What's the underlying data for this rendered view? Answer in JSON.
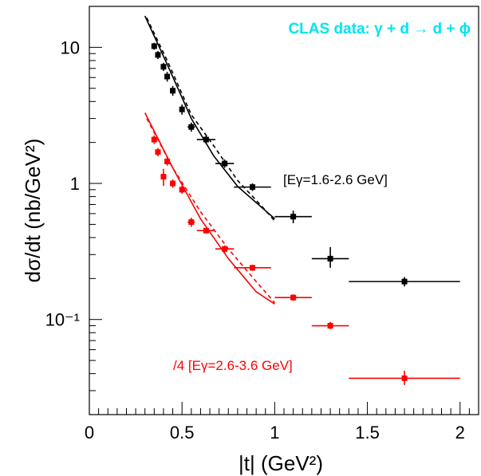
{
  "chart_data": {
    "type": "scatter",
    "title": "CLAS data: γ + d → d + ϕ",
    "title_color": "#00e5ee",
    "xlabel": "|t| (GeV²)",
    "ylabel": "dσ/dt (nb/GeV²)",
    "xlim": [
      0,
      2.1
    ],
    "ylim": [
      0.02,
      20
    ],
    "yscale": "log",
    "x_ticks": [
      0,
      0.5,
      1,
      1.5,
      2
    ],
    "x_tick_labels": [
      "0",
      "0.5",
      "1",
      "1.5",
      "2"
    ],
    "y_ticks": [
      0.1,
      1,
      10
    ],
    "y_tick_labels": [
      "10⁻¹",
      "1",
      "10"
    ],
    "grid": false,
    "series": [
      {
        "label": "[Eγ=1.6-2.6 GeV]",
        "color": "#000000",
        "points": [
          {
            "x": 0.35,
            "y": 10.2,
            "xerr": 0.01,
            "y_lo": 9.6,
            "y_hi": 10.8
          },
          {
            "x": 0.37,
            "y": 8.8,
            "xerr": 0.01,
            "y_lo": 8.2,
            "y_hi": 9.4
          },
          {
            "x": 0.4,
            "y": 7.2,
            "xerr": 0.01,
            "y_lo": 6.7,
            "y_hi": 7.7
          },
          {
            "x": 0.42,
            "y": 6.1,
            "xerr": 0.01,
            "y_lo": 5.6,
            "y_hi": 6.6
          },
          {
            "x": 0.45,
            "y": 4.8,
            "xerr": 0.01,
            "y_lo": 4.4,
            "y_hi": 5.2
          },
          {
            "x": 0.5,
            "y": 3.5,
            "xerr": 0.01,
            "y_lo": 3.2,
            "y_hi": 3.8
          },
          {
            "x": 0.55,
            "y": 2.6,
            "xerr": 0.02,
            "y_lo": 2.4,
            "y_hi": 2.8
          },
          {
            "x": 0.63,
            "y": 2.1,
            "xerr": 0.05,
            "y_lo": 1.95,
            "y_hi": 2.25
          },
          {
            "x": 0.73,
            "y": 1.4,
            "xerr": 0.05,
            "y_lo": 1.3,
            "y_hi": 1.5
          },
          {
            "x": 0.88,
            "y": 0.94,
            "xerr": 0.1,
            "y_lo": 0.88,
            "y_hi": 1.0
          },
          {
            "x": 1.1,
            "y": 0.57,
            "xerr": 0.1,
            "y_lo": 0.51,
            "y_hi": 0.63
          },
          {
            "x": 1.3,
            "y": 0.28,
            "xerr": 0.1,
            "y_lo": 0.24,
            "y_hi": 0.34
          },
          {
            "x": 1.7,
            "y": 0.19,
            "xerr": 0.3,
            "y_lo": 0.175,
            "y_hi": 0.205
          }
        ],
        "fit_solid": [
          [
            0.3,
            17.0
          ],
          [
            0.42,
            7.5
          ],
          [
            0.55,
            3.0
          ],
          [
            0.67,
            1.6
          ],
          [
            0.8,
            0.95
          ],
          [
            1.0,
            0.55
          ]
        ],
        "fit_dashed": [
          [
            0.31,
            16.5
          ],
          [
            0.42,
            8.0
          ],
          [
            0.55,
            3.2
          ],
          [
            0.67,
            1.9
          ],
          [
            0.8,
            1.05
          ],
          [
            0.93,
            0.68
          ],
          [
            1.0,
            0.53
          ]
        ]
      },
      {
        "label": "/4 [Eγ=2.6-3.6 GeV]",
        "color": "#ff0000",
        "points": [
          {
            "x": 0.35,
            "y": 2.1,
            "xerr": 0.01,
            "y_lo": 1.95,
            "y_hi": 2.25
          },
          {
            "x": 0.37,
            "y": 1.7,
            "xerr": 0.01,
            "y_lo": 1.58,
            "y_hi": 1.82
          },
          {
            "x": 0.4,
            "y": 1.12,
            "xerr": 0.01,
            "y_lo": 0.96,
            "y_hi": 1.28
          },
          {
            "x": 0.42,
            "y": 1.45,
            "xerr": 0.01,
            "y_lo": 1.35,
            "y_hi": 1.55
          },
          {
            "x": 0.45,
            "y": 1.0,
            "xerr": 0.01,
            "y_lo": 0.93,
            "y_hi": 1.07
          },
          {
            "x": 0.5,
            "y": 0.9,
            "xerr": 0.01,
            "y_lo": 0.84,
            "y_hi": 0.96
          },
          {
            "x": 0.55,
            "y": 0.52,
            "xerr": 0.02,
            "y_lo": 0.48,
            "y_hi": 0.56
          },
          {
            "x": 0.63,
            "y": 0.45,
            "xerr": 0.05,
            "y_lo": 0.43,
            "y_hi": 0.47
          },
          {
            "x": 0.73,
            "y": 0.33,
            "xerr": 0.05,
            "y_lo": 0.31,
            "y_hi": 0.35
          },
          {
            "x": 0.88,
            "y": 0.24,
            "xerr": 0.1,
            "y_lo": 0.228,
            "y_hi": 0.252
          },
          {
            "x": 1.1,
            "y": 0.145,
            "xerr": 0.1,
            "y_lo": 0.137,
            "y_hi": 0.153
          },
          {
            "x": 1.3,
            "y": 0.09,
            "xerr": 0.1,
            "y_lo": 0.085,
            "y_hi": 0.096
          },
          {
            "x": 1.7,
            "y": 0.037,
            "xerr": 0.3,
            "y_lo": 0.033,
            "y_hi": 0.042
          }
        ],
        "fit_solid": [
          [
            0.3,
            3.3
          ],
          [
            0.45,
            1.3
          ],
          [
            0.6,
            0.55
          ],
          [
            0.75,
            0.28
          ],
          [
            0.9,
            0.16
          ],
          [
            1.0,
            0.13
          ]
        ],
        "fit_dashed": [
          [
            0.31,
            3.0
          ],
          [
            0.45,
            1.3
          ],
          [
            0.6,
            0.62
          ],
          [
            0.75,
            0.33
          ],
          [
            0.9,
            0.19
          ],
          [
            1.0,
            0.133
          ]
        ]
      }
    ]
  }
}
